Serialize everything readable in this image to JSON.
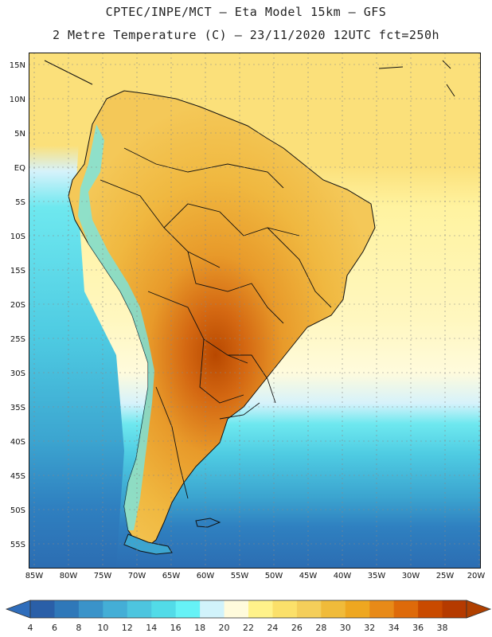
{
  "header": {
    "line1": "CPTEC/INPE/MCT –  Eta Model 15km – GFS",
    "line2": "2 Metre Temperature (C) – 23/11/2020 12UTC fct=250h"
  },
  "map": {
    "lat_labels": [
      "15N",
      "10N",
      "5N",
      "EQ",
      "5S",
      "10S",
      "15S",
      "20S",
      "25S",
      "30S",
      "35S",
      "40S",
      "45S",
      "50S",
      "55S"
    ],
    "lon_labels": [
      "85W",
      "80W",
      "75W",
      "70W",
      "65W",
      "60W",
      "55W",
      "50W",
      "45W",
      "40W",
      "35W",
      "30W",
      "25W",
      "20W"
    ],
    "ocean_bands": [
      "#fbe080",
      "#fff4a0",
      "#fffbd8",
      "#d6f2fb",
      "#6ee8ef",
      "#4ecbe2",
      "#3ca5d0",
      "#2f80c0",
      "#2c6db2"
    ]
  },
  "colorbar": {
    "labels": [
      "4",
      "6",
      "8",
      "10",
      "12",
      "14",
      "16",
      "18",
      "20",
      "22",
      "24",
      "26",
      "28",
      "30",
      "32",
      "34",
      "36",
      "38"
    ],
    "colors": [
      "#2a5fa8",
      "#2f78b9",
      "#3a93c9",
      "#44aed6",
      "#4dc5df",
      "#52dbe8",
      "#66f2f6",
      "#d1f3fb",
      "#fffbdc",
      "#fff28a",
      "#fbe06a",
      "#f4ce5a",
      "#f0bb3a",
      "#eea720",
      "#e88a18",
      "#de6a0a",
      "#c94a00",
      "#b53a00"
    ],
    "under_color": "#2f6dbb",
    "over_color": "#b04000"
  }
}
